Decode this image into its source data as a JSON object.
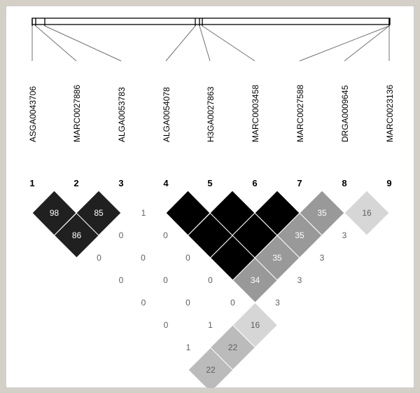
{
  "markers": [
    {
      "index": "1",
      "name": "ASGA0043706"
    },
    {
      "index": "2",
      "name": "MARC0027886"
    },
    {
      "index": "3",
      "name": "ALGA0053783"
    },
    {
      "index": "4",
      "name": "ALGA0054078"
    },
    {
      "index": "5",
      "name": "H3GA0027863"
    },
    {
      "index": "6",
      "name": "MARC0003458"
    },
    {
      "index": "7",
      "name": "MARC0027588"
    },
    {
      "index": "8",
      "name": "DRGA0009645"
    },
    {
      "index": "9",
      "name": "MARC0023136"
    }
  ],
  "chart_data": {
    "type": "heatmap",
    "title": "",
    "description_type": "pairwise linkage disequilibrium (D') matrix",
    "colors": {
      "background": "#d4d0c8",
      "strong_ld": "#000000",
      "high": "#202020",
      "medium": "#999999",
      "light": "#bbbbbb",
      "low": "#d6d6d6",
      "none": "#ffffff"
    },
    "cells": [
      {
        "i": 1,
        "j": 2,
        "label": "98",
        "shade": "high"
      },
      {
        "i": 1,
        "j": 3,
        "label": "86",
        "shade": "high"
      },
      {
        "i": 1,
        "j": 4,
        "label": "0",
        "shade": "none"
      },
      {
        "i": 1,
        "j": 5,
        "label": "0",
        "shade": "none"
      },
      {
        "i": 1,
        "j": 6,
        "label": "0",
        "shade": "none"
      },
      {
        "i": 1,
        "j": 7,
        "label": "0",
        "shade": "none"
      },
      {
        "i": 1,
        "j": 8,
        "label": "1",
        "shade": "none"
      },
      {
        "i": 1,
        "j": 9,
        "label": "22",
        "shade": "light"
      },
      {
        "i": 2,
        "j": 3,
        "label": "85",
        "shade": "high"
      },
      {
        "i": 2,
        "j": 4,
        "label": "0",
        "shade": "none"
      },
      {
        "i": 2,
        "j": 5,
        "label": "0",
        "shade": "none"
      },
      {
        "i": 2,
        "j": 6,
        "label": "0",
        "shade": "none"
      },
      {
        "i": 2,
        "j": 7,
        "label": "0",
        "shade": "none"
      },
      {
        "i": 2,
        "j": 8,
        "label": "1",
        "shade": "none"
      },
      {
        "i": 2,
        "j": 9,
        "label": "22",
        "shade": "light"
      },
      {
        "i": 3,
        "j": 4,
        "label": "1",
        "shade": "none"
      },
      {
        "i": 3,
        "j": 5,
        "label": "0",
        "shade": "none"
      },
      {
        "i": 3,
        "j": 6,
        "label": "0",
        "shade": "none"
      },
      {
        "i": 3,
        "j": 7,
        "label": "0",
        "shade": "none"
      },
      {
        "i": 3,
        "j": 8,
        "label": "0",
        "shade": "none"
      },
      {
        "i": 3,
        "j": 9,
        "label": "16",
        "shade": "low"
      },
      {
        "i": 4,
        "j": 5,
        "label": "",
        "shade": "strong_ld"
      },
      {
        "i": 4,
        "j": 6,
        "label": "",
        "shade": "strong_ld"
      },
      {
        "i": 4,
        "j": 7,
        "label": "",
        "shade": "strong_ld"
      },
      {
        "i": 4,
        "j": 8,
        "label": "34",
        "shade": "medium"
      },
      {
        "i": 4,
        "j": 9,
        "label": "3",
        "shade": "none"
      },
      {
        "i": 5,
        "j": 6,
        "label": "",
        "shade": "strong_ld"
      },
      {
        "i": 5,
        "j": 7,
        "label": "",
        "shade": "strong_ld"
      },
      {
        "i": 5,
        "j": 8,
        "label": "35",
        "shade": "medium"
      },
      {
        "i": 5,
        "j": 9,
        "label": "3",
        "shade": "none"
      },
      {
        "i": 6,
        "j": 7,
        "label": "",
        "shade": "strong_ld"
      },
      {
        "i": 6,
        "j": 8,
        "label": "35",
        "shade": "medium"
      },
      {
        "i": 6,
        "j": 9,
        "label": "3",
        "shade": "none"
      },
      {
        "i": 7,
        "j": 8,
        "label": "35",
        "shade": "medium"
      },
      {
        "i": 7,
        "j": 9,
        "label": "3",
        "shade": "none"
      },
      {
        "i": 8,
        "j": 9,
        "label": "16",
        "shade": "low"
      }
    ],
    "grid": false,
    "legend": "none"
  }
}
